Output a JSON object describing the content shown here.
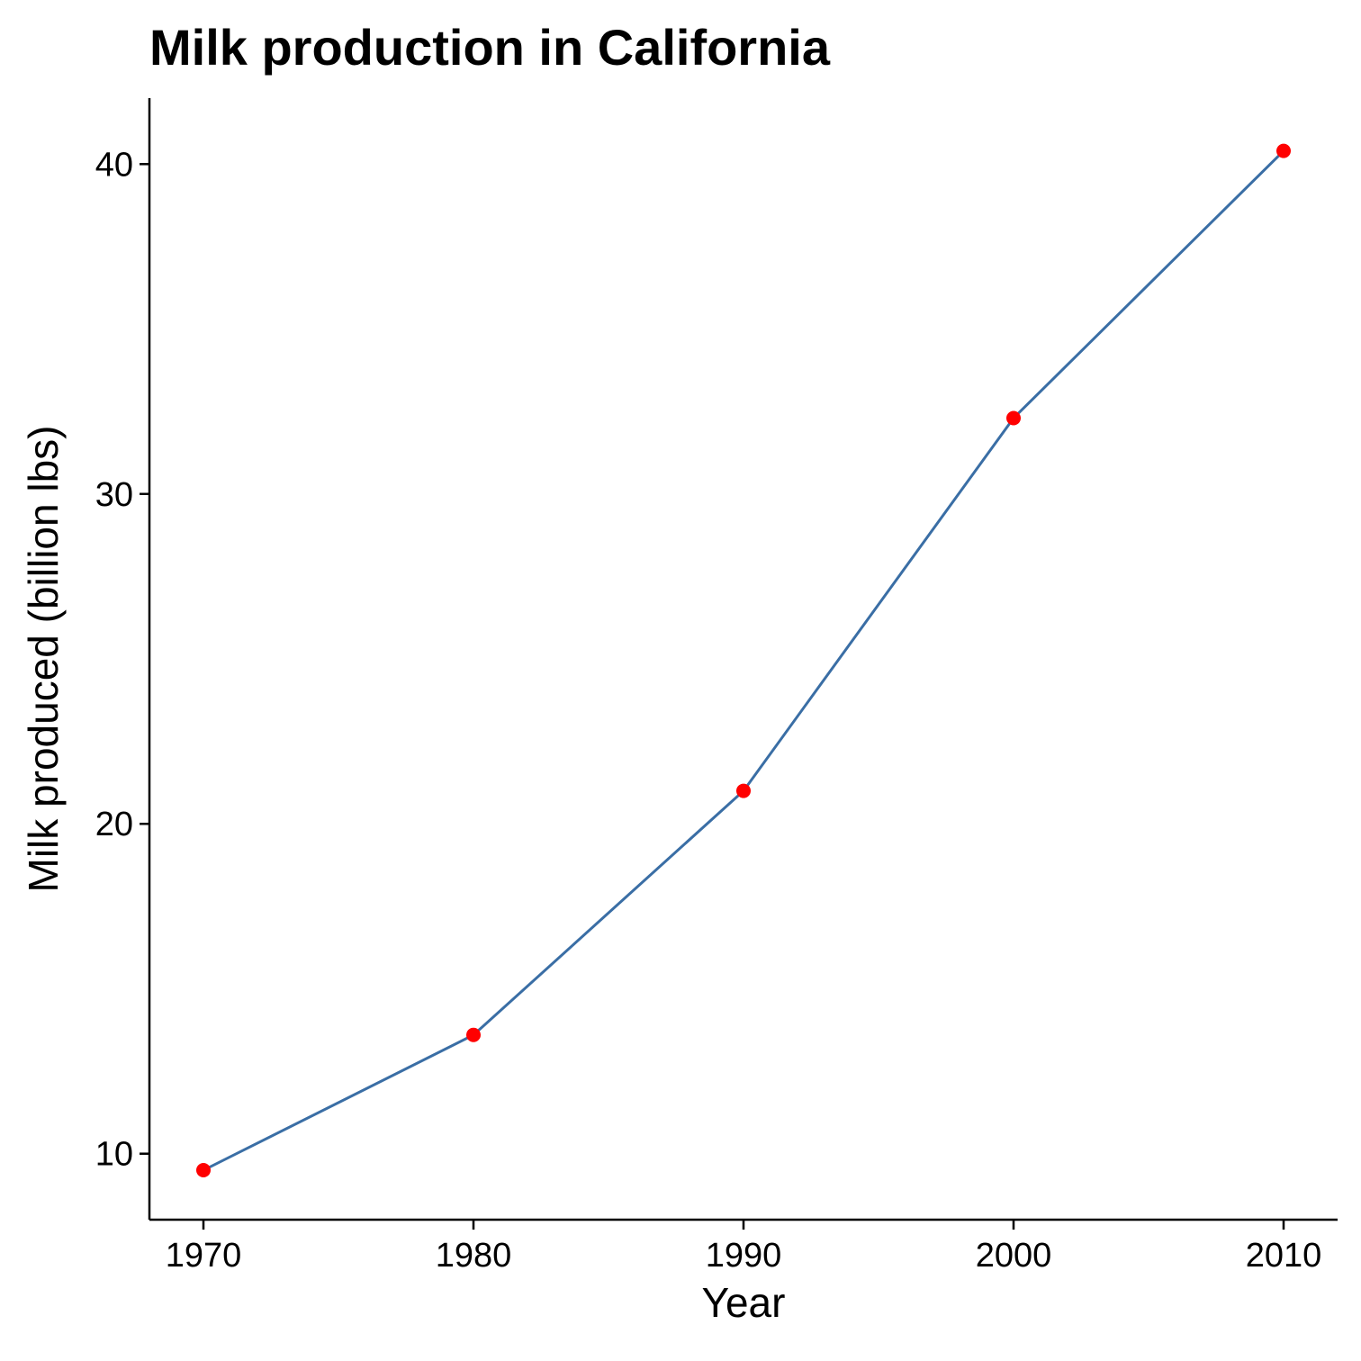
{
  "chart_data": {
    "type": "line",
    "title": "Milk production in California",
    "xlabel": "Year",
    "ylabel": "Milk produced (billion lbs)",
    "x": [
      1970,
      1980,
      1990,
      2000,
      2010
    ],
    "series": [
      {
        "values": [
          9.5,
          13.6,
          21.0,
          32.3,
          40.4
        ]
      }
    ],
    "xlim": [
      1968,
      2012
    ],
    "ylim": [
      8,
      42
    ],
    "xticks": [
      1970,
      1980,
      1990,
      2000,
      2010
    ],
    "yticks": [
      10,
      20,
      30,
      40
    ],
    "grid": false,
    "legend": "none",
    "line_color": "#3a6ea5",
    "point_color": "#ff0000"
  }
}
